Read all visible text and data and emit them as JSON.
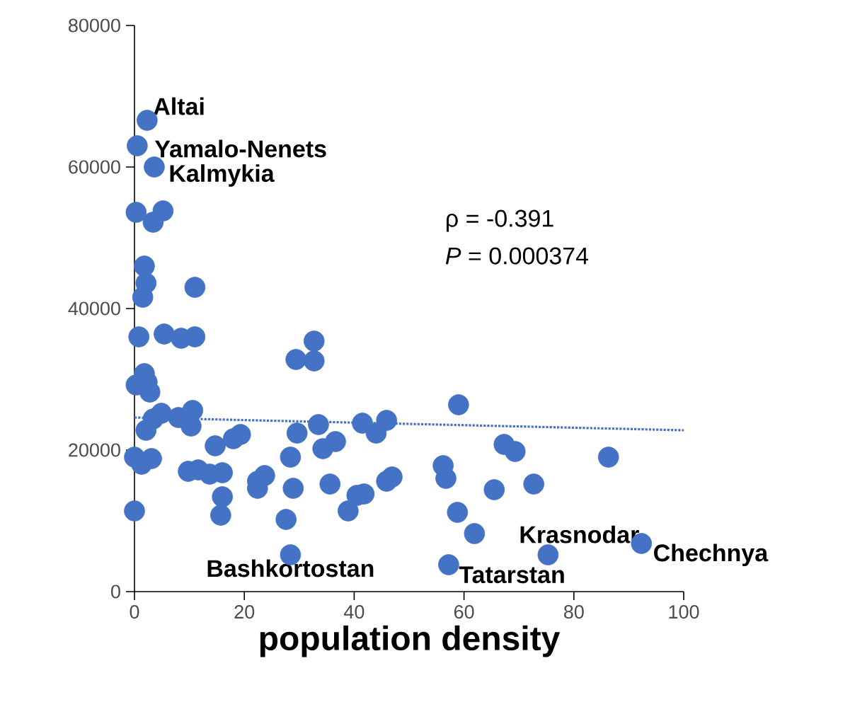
{
  "chart_data": {
    "type": "scatter",
    "xlabel": "population density",
    "xlim": [
      0,
      100
    ],
    "xticks": [
      0,
      20,
      40,
      60,
      80,
      100
    ],
    "ylim": [
      0,
      80000
    ],
    "yticks": [
      0,
      20000,
      40000,
      60000,
      80000
    ],
    "series": [
      {
        "color": "#4472c4",
        "marker": "circle",
        "x": [
          2.3,
          0.5,
          3.6,
          0.3,
          5.2,
          3.4,
          1.8,
          2.1,
          1.5,
          11,
          0.8,
          5.4,
          8.5,
          11,
          1.8,
          0.3,
          2.8,
          2.3,
          3.4,
          4.9,
          2.1,
          8,
          10.6,
          10.3,
          0,
          1.3,
          3.1,
          14.7,
          18,
          19.3,
          9.8,
          11.6,
          13.7,
          16,
          16,
          15.7,
          0,
          32.7,
          29.4,
          32.7,
          59,
          29.6,
          33.5,
          41.5,
          45.9,
          44,
          34.3,
          36.6,
          28.4,
          56.2,
          56.7,
          46.9,
          45.9,
          35.6,
          28.9,
          41.8,
          40.5,
          38.9,
          27.6,
          58.8,
          61.9,
          28.4,
          57.2,
          65.5,
          67.3,
          69.3,
          86.3,
          72.7,
          75.3,
          92.3,
          22.4,
          22.4,
          23.7
        ],
        "values": [
          66600,
          63000,
          60000,
          53600,
          53800,
          52200,
          46000,
          43600,
          41600,
          43000,
          36000,
          36400,
          35800,
          36000,
          30800,
          29200,
          28200,
          29600,
          24400,
          25200,
          22800,
          24600,
          25600,
          23400,
          19000,
          18000,
          18800,
          20600,
          21600,
          22200,
          17000,
          17200,
          16600,
          16800,
          13400,
          10800,
          11400,
          35400,
          32800,
          32600,
          26400,
          22400,
          23600,
          23800,
          24200,
          22400,
          20200,
          21200,
          19000,
          17800,
          16000,
          16200,
          15600,
          15200,
          14600,
          13800,
          13600,
          11400,
          10200,
          11200,
          8200,
          5200,
          3800,
          14400,
          20800,
          19800,
          19000,
          15200,
          5200,
          6800,
          15600,
          14600,
          16400
        ]
      },
      {
        "type": "line",
        "color": "#4472c4",
        "line_style": "dotted",
        "marker": "none",
        "x": [
          0,
          100
        ],
        "values": [
          24600,
          22800
        ]
      }
    ],
    "annotations": [
      {
        "text": "**Altai**",
        "x": 2.3,
        "y": 66600
      },
      {
        "text": "**Yamalo-Nenets**",
        "x": 0.5,
        "y": 63000
      },
      {
        "text": "**Kalmykia**",
        "x": 3.6,
        "y": 60000
      },
      {
        "text": "**Bashkortostan**",
        "x": 28.4,
        "y": 5200
      },
      {
        "text": "**Tatarstan**",
        "x": 57.2,
        "y": 3800
      },
      {
        "text": "**Krasnodar**",
        "x": 75.3,
        "y": 5200
      },
      {
        "text": "**Chechnya**",
        "x": 92.3,
        "y": 6800
      },
      "ρ = -0.391",
      "*P* = 0.000374"
    ]
  }
}
